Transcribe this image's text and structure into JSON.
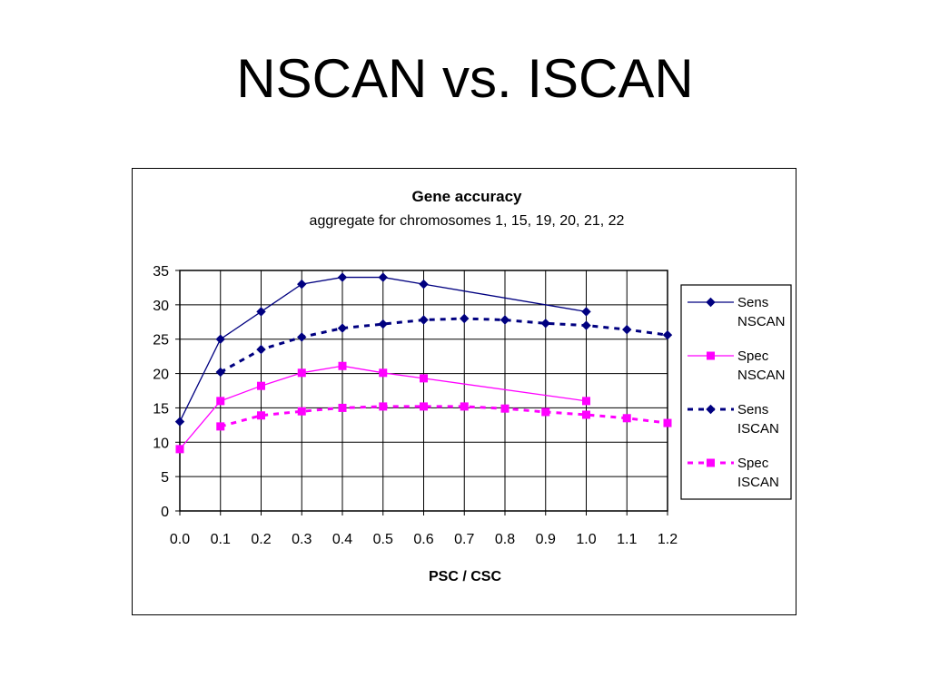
{
  "slide": {
    "title": "NSCAN vs. ISCAN"
  },
  "chart_data": {
    "type": "line",
    "title": "Gene accuracy",
    "subtitle": "aggregate for chromosomes 1, 15, 19, 20, 21, 22",
    "xlabel": "PSC / CSC",
    "ylabel": "",
    "x": [
      0.0,
      0.1,
      0.2,
      0.3,
      0.4,
      0.5,
      0.6,
      0.7,
      0.8,
      0.9,
      1.0,
      1.1,
      1.2
    ],
    "x_tick_labels": [
      "0.0",
      "0.1",
      "0.2",
      "0.3",
      "0.4",
      "0.5",
      "0.6",
      "0.7",
      "0.8",
      "0.9",
      "1.0",
      "1.1",
      "1.2"
    ],
    "y_ticks": [
      0,
      5,
      10,
      15,
      20,
      25,
      30,
      35
    ],
    "ylim": [
      0,
      35
    ],
    "xlim": [
      0.0,
      1.2
    ],
    "grid": true,
    "legend_position": "right",
    "series": [
      {
        "name_line1": "Sens",
        "name_line2": "NSCAN",
        "color": "#000080",
        "marker": "diamond",
        "dash": "solid",
        "x": [
          0.0,
          0.1,
          0.2,
          0.3,
          0.4,
          0.5,
          0.6,
          1.0
        ],
        "values": [
          13,
          25,
          29,
          33,
          34,
          34,
          33,
          29
        ]
      },
      {
        "name_line1": "Spec",
        "name_line2": "NSCAN",
        "color": "#ff00ff",
        "marker": "square",
        "dash": "solid",
        "x": [
          0.0,
          0.1,
          0.2,
          0.3,
          0.4,
          0.5,
          0.6,
          1.0
        ],
        "values": [
          9,
          16,
          18.2,
          20.1,
          21.1,
          20.1,
          19.3,
          16
        ]
      },
      {
        "name_line1": "Sens",
        "name_line2": "ISCAN",
        "color": "#000080",
        "marker": "diamond",
        "dash": "dashed",
        "x": [
          0.1,
          0.2,
          0.3,
          0.4,
          0.5,
          0.6,
          0.7,
          0.8,
          0.9,
          1.0,
          1.1,
          1.2
        ],
        "values": [
          20.2,
          23.5,
          25.3,
          26.6,
          27.2,
          27.8,
          28.0,
          27.8,
          27.3,
          27.0,
          26.4,
          25.6
        ]
      },
      {
        "name_line1": "Spec",
        "name_line2": "ISCAN",
        "color": "#ff00ff",
        "marker": "square",
        "dash": "dashed",
        "x": [
          0.1,
          0.2,
          0.3,
          0.4,
          0.5,
          0.6,
          0.7,
          0.8,
          0.9,
          1.0,
          1.1,
          1.2
        ],
        "values": [
          12.3,
          13.9,
          14.5,
          15.0,
          15.2,
          15.2,
          15.2,
          14.9,
          14.4,
          14.0,
          13.5,
          12.8
        ]
      }
    ]
  }
}
